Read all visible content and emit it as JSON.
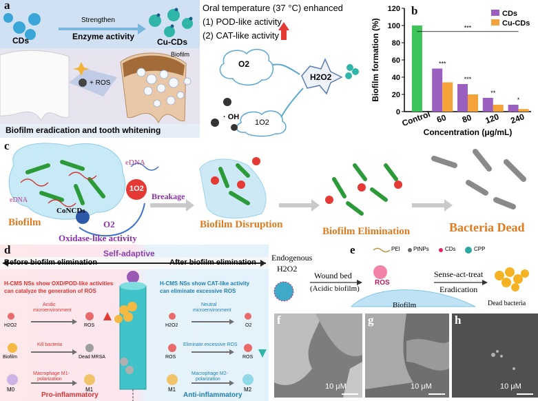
{
  "panel_a": {
    "label": "a",
    "cds": "CDs",
    "cu_cds": "Cu-CDs",
    "strengthen": "Strengthen",
    "enzyme_activity": "Enzyme activity",
    "ros": "+ ROS",
    "biofilm": "Biofilm",
    "caption": "Biofilm eradication and tooth whitening",
    "oral_temp": "Oral temperature  (37 °C)  enhanced",
    "pod": "(1) POD-like activity",
    "cat": "(2) CAT-like activity",
    "o2": "O2",
    "h2o2": "H2O2",
    "oh": "· OH",
    "singlet": "1O2"
  },
  "panel_b": {
    "label": "b",
    "chart_data": {
      "type": "bar",
      "categories": [
        "Control",
        "60",
        "80",
        "120",
        "240"
      ],
      "series": [
        {
          "name": "CDs",
          "values": [
            100,
            50,
            32,
            16,
            8
          ]
        },
        {
          "name": "Cu-CDs",
          "values": [
            null,
            34,
            20,
            8,
            3
          ]
        }
      ],
      "xlabel": "Concentration (μg/mL)",
      "ylabel": "Biofilm formation (%)",
      "ylim": [
        0,
        120
      ],
      "yticks": [
        0,
        20,
        40,
        60,
        80,
        100,
        120
      ],
      "significance": [
        "***",
        "***",
        "***",
        "**",
        "*"
      ],
      "legend_position": "top-right",
      "colors": {
        "Control": "#3cc35a",
        "CDs": "#9b5fc0",
        "Cu-CDs": "#f5a23a"
      }
    }
  },
  "panel_c": {
    "label": "c",
    "biofilm": "Biofilm",
    "edna_left": "eDNA",
    "edna_top": "eDNA",
    "conc": "CoNCDs",
    "o2": "O2",
    "singlet": "1O2",
    "oxidase": "Oxidase-like activity",
    "breakage": "Breakage",
    "disruption": "Biofilm Disruption",
    "elimination": "Biofilm Elimination",
    "dead": "Bacteria Dead"
  },
  "panel_d": {
    "label": "d",
    "self_adaptive": "Self-adaptive",
    "before": "Before biofilm elimination",
    "after": "After biofilm elimination",
    "left_desc1": "H-CMS NSs show OXD/POD-like activities",
    "left_desc2": "can catalyze the generation of ROS",
    "right_desc1": "H-CMS NSs show CAT-like activity",
    "right_desc2": "can eliminate excessive ROS",
    "acidic": "Acidic",
    "acidic2": "microenvironment",
    "neutral": "Neutral",
    "neutral2": "microenvironment",
    "h2o2": "H2O2",
    "ros": "ROS",
    "o2": "O2",
    "kill": "Kill bacteria",
    "biofilm": "Biofilm",
    "dead_mrsa": "Dead MRSA",
    "eliminate_ros": "Eliminate excessive ROS",
    "m1_pol": "Macrophage M1-",
    "m2_pol": "Macrophage M2-",
    "polarization": "polarization",
    "m0": "M0",
    "m1": "M1",
    "m2": "M2",
    "pro": "Pro-inflammatory",
    "anti": "Anti-inflammatory"
  },
  "panel_e": {
    "label": "e",
    "legend_pei": "PEI",
    "legend_pt": "PtNPs",
    "legend_cds": "CDs",
    "legend_cpp": "CPP",
    "endogenous": "Endogenous",
    "h2o2": "H2O2",
    "wound": "Wound bed",
    "acidic": "(Acidic biofilm)",
    "ros": "ROS",
    "biofilm": "Biofilm",
    "sense": "Sense-act-treat",
    "eradication": "Eradication",
    "dead": "Dead bacteria"
  },
  "sem": [
    {
      "label": "f",
      "scale": "10 μM"
    },
    {
      "label": "g",
      "scale": "10 μM"
    },
    {
      "label": "h",
      "scale": "10 μM"
    }
  ]
}
